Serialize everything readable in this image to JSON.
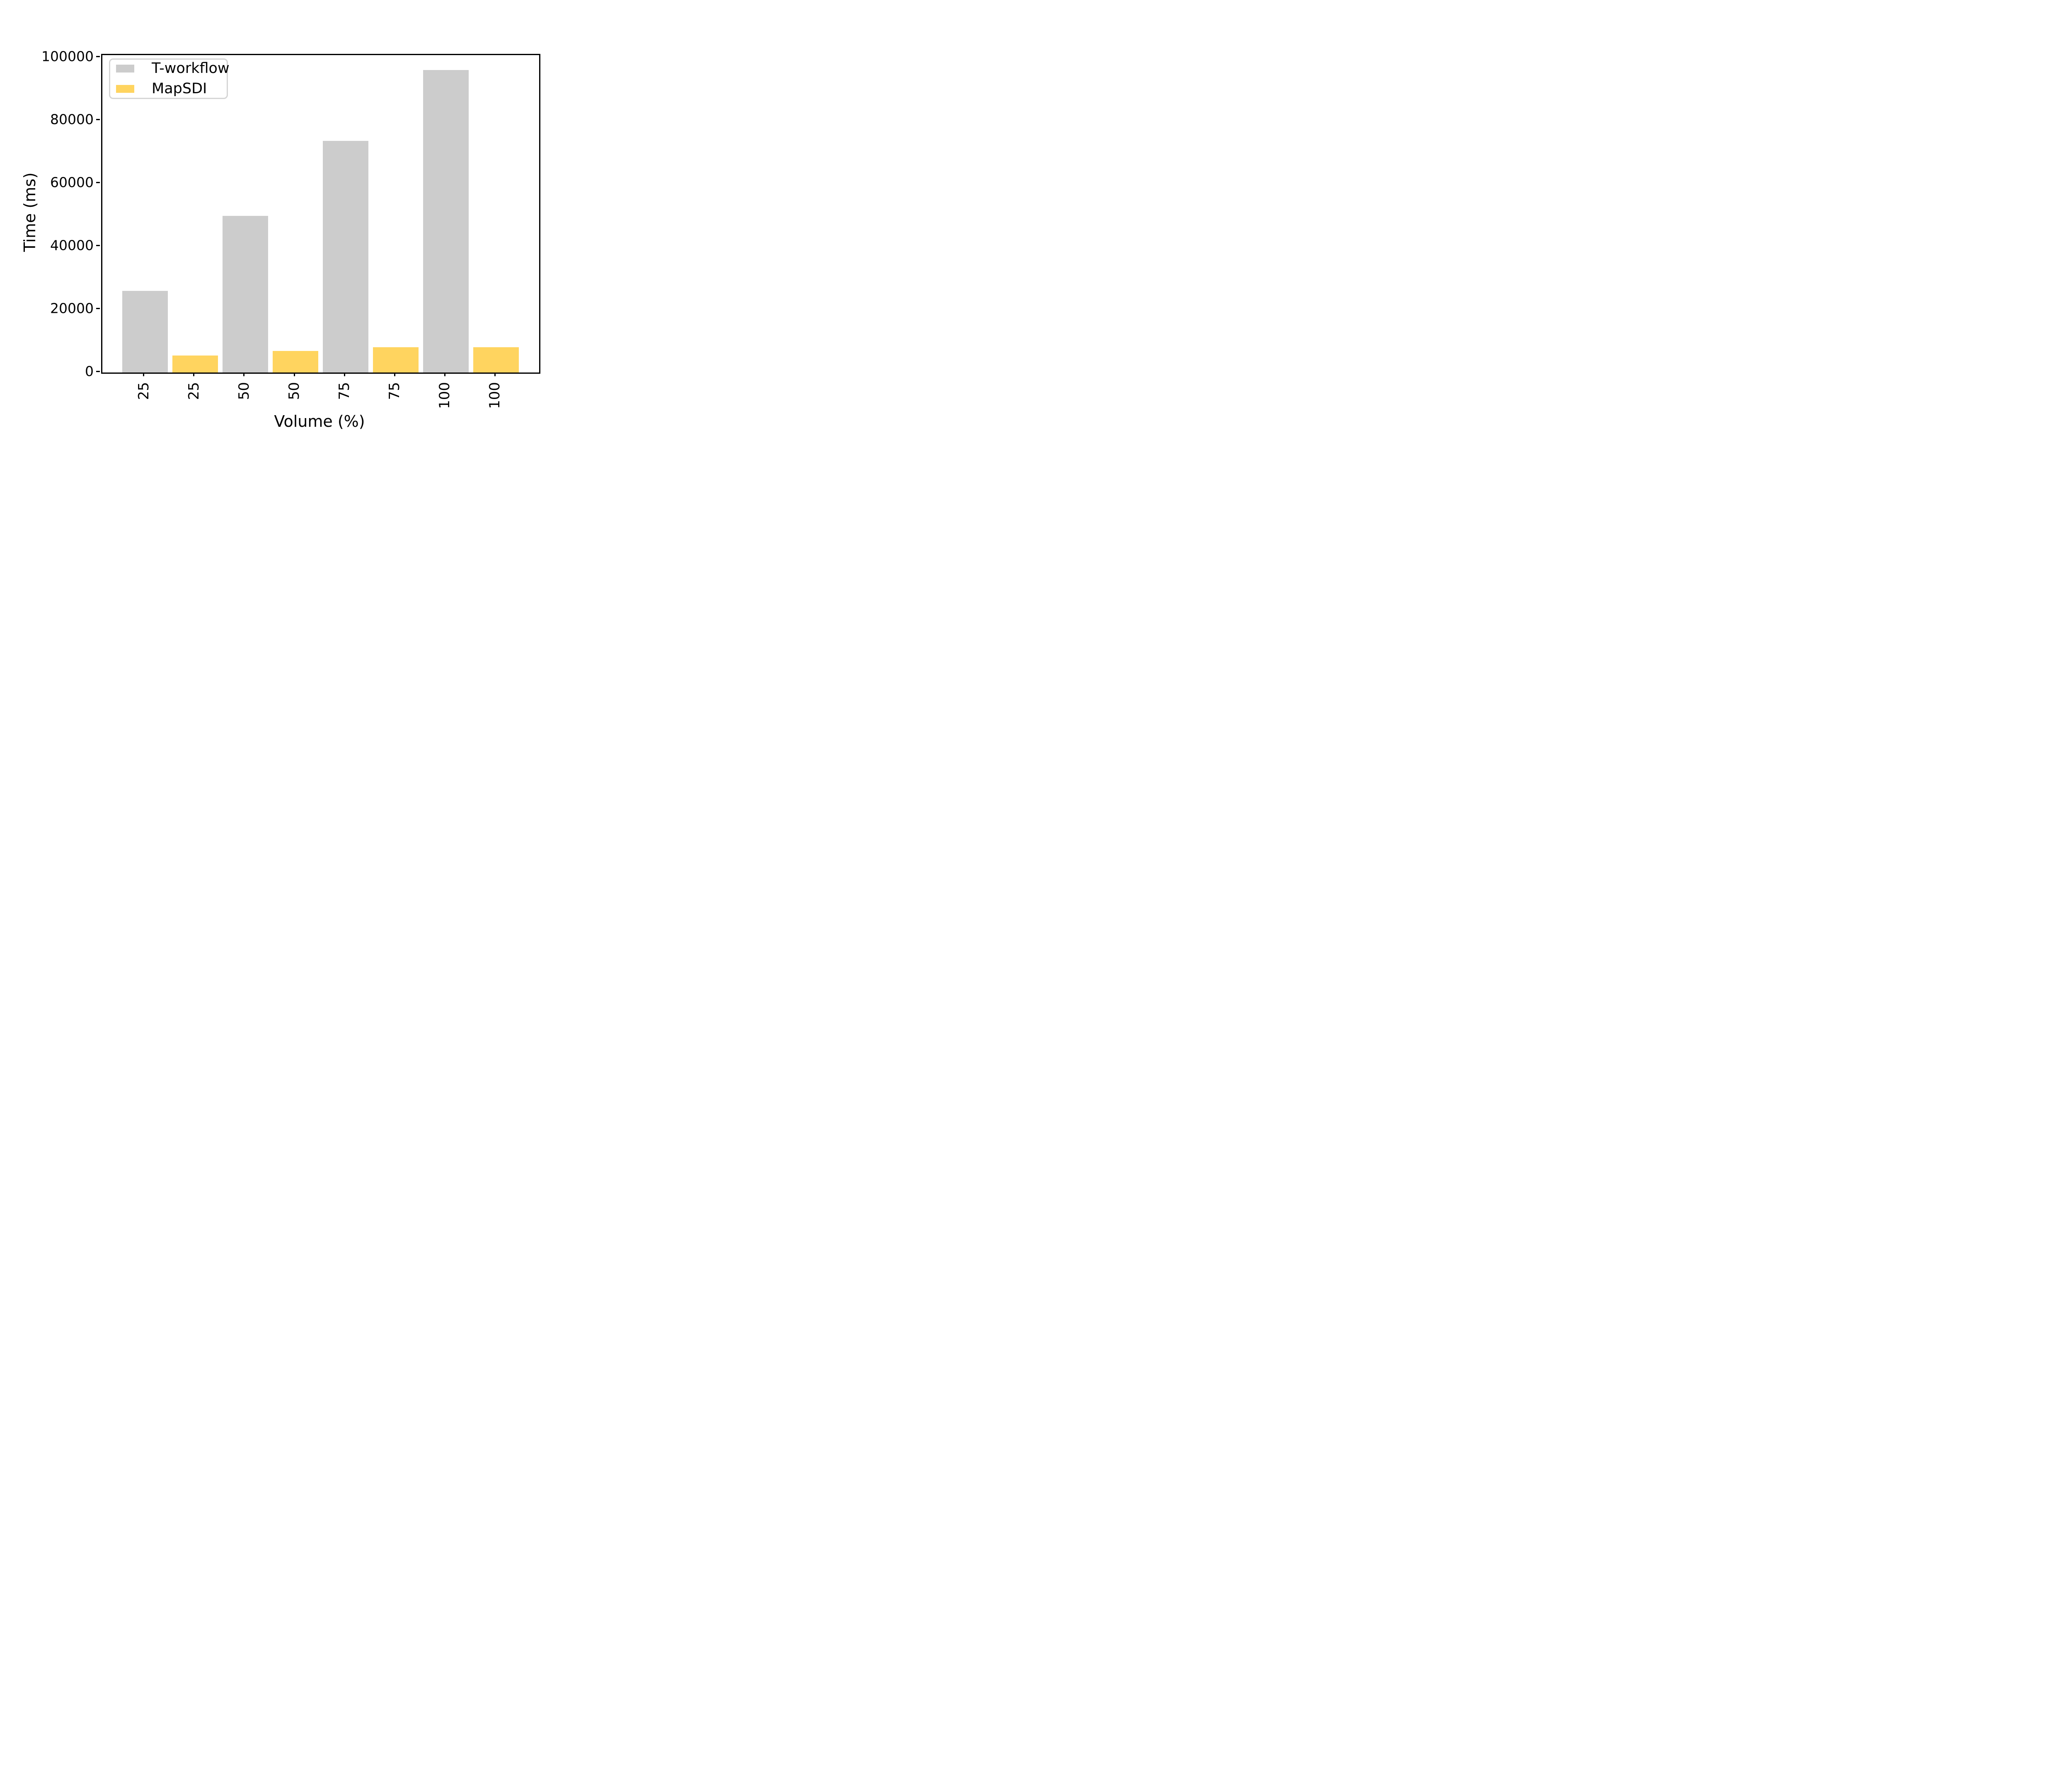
{
  "figure": {
    "background": "#ffffff"
  },
  "colors": {
    "t_workflow_bar": "#cccccc",
    "mapsdi_bar": "#ffd45f",
    "axis": "#000000",
    "legend_border": "#d5d5d5"
  },
  "chart_data": {
    "type": "bar",
    "title": "",
    "xlabel": "Volume (%)",
    "ylabel": "Time (ms)",
    "categories": [
      "25",
      "25",
      "50",
      "50",
      "75",
      "75",
      "100",
      "100"
    ],
    "x_tick_labels": [
      "25",
      "25",
      "50",
      "50",
      "75",
      "75",
      "100",
      "100"
    ],
    "x_tick_rotation_deg": 90,
    "y_ticks": [
      0,
      20000,
      40000,
      60000,
      80000,
      100000
    ],
    "y_tick_labels": [
      "0",
      "20000",
      "40000",
      "60000",
      "80000",
      "100000"
    ],
    "ylim": [
      0,
      100800
    ],
    "grid": false,
    "legend": {
      "position": "upper-left",
      "entries": [
        {
          "label": "T-workflow",
          "color": "#cccccc"
        },
        {
          "label": "MapSDI",
          "color": "#ffd45f"
        }
      ]
    },
    "series": [
      {
        "name": "T-workflow",
        "color": "#cccccc",
        "volumes": [
          "25",
          "50",
          "75",
          "100"
        ],
        "values": [
          25900,
          49700,
          73500,
          96000
        ]
      },
      {
        "name": "MapSDI",
        "color": "#ffd45f",
        "volumes": [
          "25",
          "50",
          "75",
          "100"
        ],
        "values": [
          5400,
          6800,
          8000,
          8050
        ]
      }
    ],
    "bars": [
      {
        "label": "25",
        "series": "T-workflow",
        "value": 25900
      },
      {
        "label": "25",
        "series": "MapSDI",
        "value": 5400
      },
      {
        "label": "50",
        "series": "T-workflow",
        "value": 49700
      },
      {
        "label": "50",
        "series": "MapSDI",
        "value": 6800
      },
      {
        "label": "75",
        "series": "T-workflow",
        "value": 73500
      },
      {
        "label": "75",
        "series": "MapSDI",
        "value": 8000
      },
      {
        "label": "100",
        "series": "T-workflow",
        "value": 96000
      },
      {
        "label": "100",
        "series": "MapSDI",
        "value": 8050
      }
    ]
  }
}
